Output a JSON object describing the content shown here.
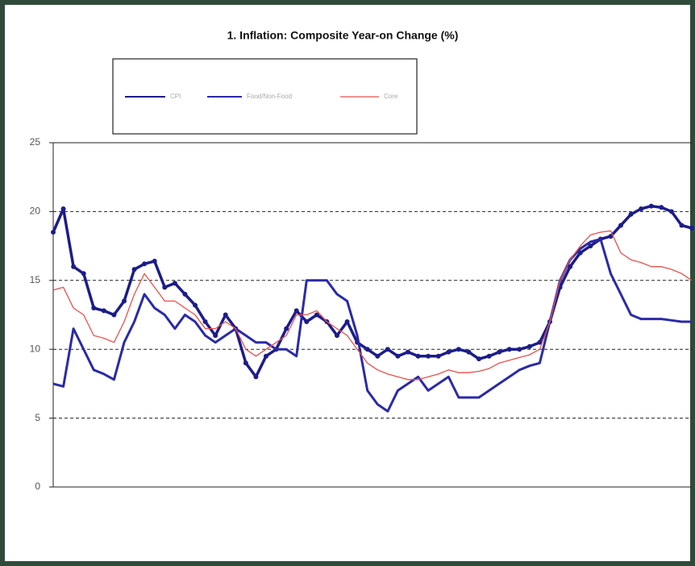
{
  "chart_data": {
    "type": "line",
    "title": "1. Inflation: Composite Year-on Change (%)",
    "ylim": [
      0,
      25
    ],
    "yticks": [
      0,
      5,
      10,
      15,
      20,
      25
    ],
    "grid": true,
    "series": [
      {
        "name": "CPI",
        "color": "#1c1c8a",
        "markers": true,
        "values": [
          18.5,
          20.2,
          16,
          15.5,
          13,
          12.8,
          12.5,
          13.5,
          15.8,
          16.2,
          16.4,
          14.5,
          14.8,
          14,
          13.2,
          12,
          11,
          12.5,
          11.5,
          9,
          8,
          9.5,
          10,
          11.5,
          12.8,
          12,
          12.5,
          12,
          11,
          12,
          10.5,
          10,
          9.5,
          10,
          9.5,
          9.8,
          9.5,
          9.5,
          9.5,
          9.8,
          10,
          9.8,
          9.3,
          9.5,
          9.8,
          10,
          10,
          10.2,
          10.5,
          12,
          14.5,
          16,
          17,
          17.5,
          18,
          18.2,
          19,
          19.8,
          20.2,
          20.4,
          20.3,
          20,
          19,
          18.8
        ]
      },
      {
        "name": "Food/Non-Food",
        "color": "#2a2aa8",
        "markers": false,
        "values": [
          7.5,
          7.3,
          11.5,
          10,
          8.5,
          8.2,
          7.8,
          10.5,
          12,
          14,
          13,
          12.5,
          11.5,
          12.5,
          12,
          11,
          10.5,
          11,
          11.5,
          11,
          10.5,
          10.5,
          10,
          10,
          9.5,
          15,
          15,
          15,
          14,
          13.5,
          11,
          7,
          6,
          5.5,
          7,
          7.5,
          8,
          7,
          7.5,
          8,
          6.5,
          6.5,
          6.5,
          7,
          7.5,
          8,
          8.5,
          8.8,
          9,
          12,
          15,
          16.5,
          17.3,
          17.8,
          18,
          15.5,
          14,
          12.5,
          12.2,
          12.2,
          12.2,
          12.1,
          12,
          12
        ]
      },
      {
        "name": "Core",
        "color": "#e8504a",
        "markers": false,
        "values": [
          14.3,
          14.5,
          13,
          12.5,
          11,
          10.8,
          10.5,
          12,
          14,
          15.5,
          14.5,
          13.5,
          13.5,
          13,
          12.5,
          11.5,
          11.5,
          12,
          11.5,
          10,
          9.5,
          10,
          10.5,
          11,
          12.5,
          12.5,
          12.8,
          12,
          11.5,
          11,
          10,
          9,
          8.5,
          8.2,
          8,
          7.8,
          7.8,
          8,
          8.2,
          8.5,
          8.3,
          8.3,
          8.4,
          8.6,
          9,
          9.2,
          9.4,
          9.6,
          10,
          12,
          15,
          16.5,
          17.5,
          18.3,
          18.5,
          18.6,
          17,
          16.5,
          16.3,
          16,
          16,
          15.8,
          15.5,
          15
        ]
      }
    ]
  }
}
